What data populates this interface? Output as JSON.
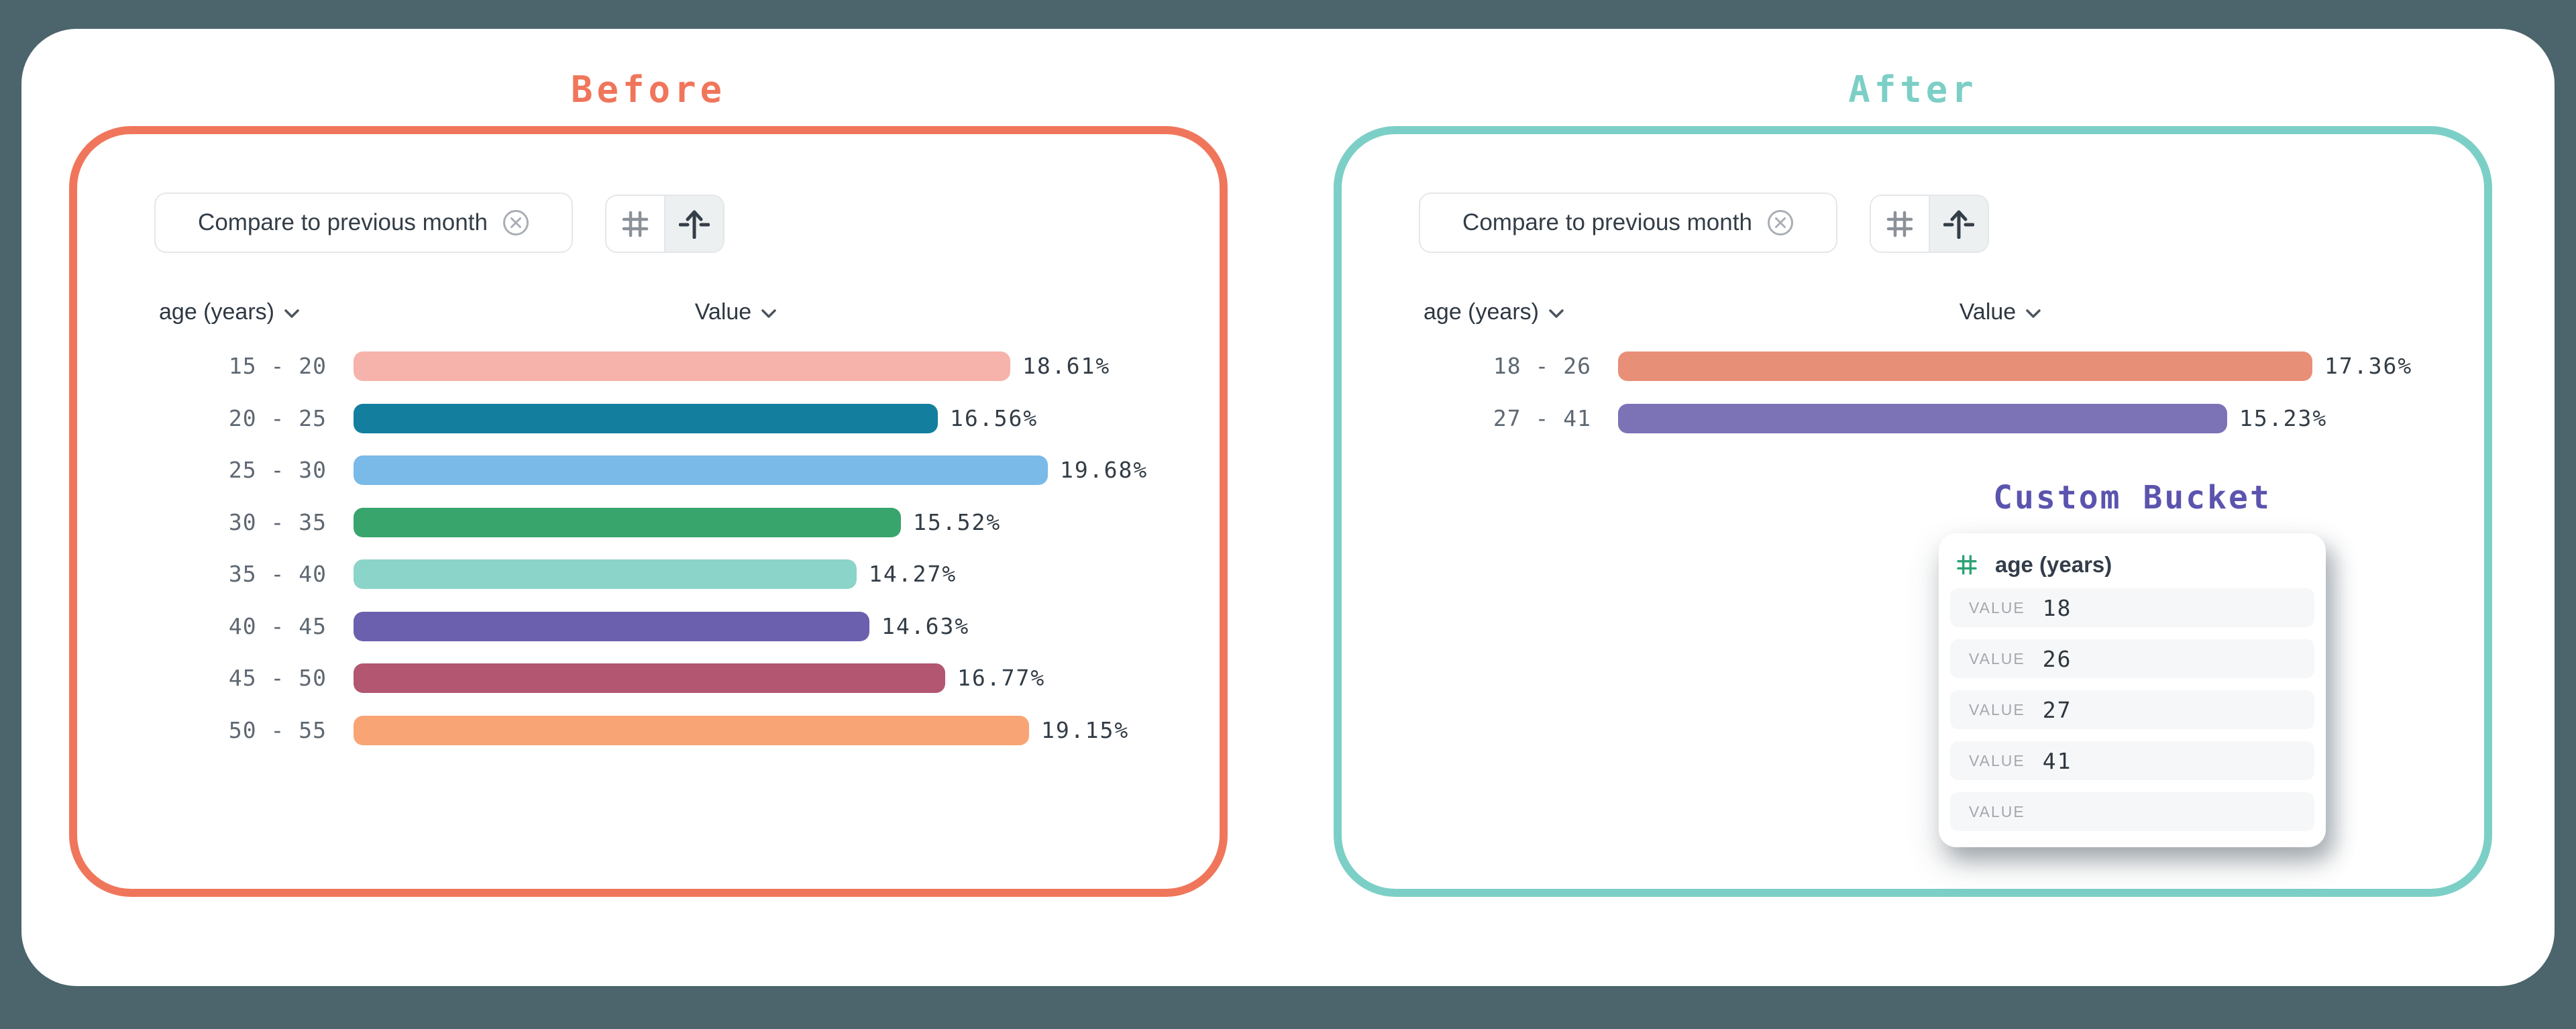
{
  "page": {
    "background": "#4C656D"
  },
  "before_panel": {
    "title": "Before",
    "accent": "#F0765B",
    "filter_chip": {
      "label": "Compare to previous month"
    },
    "columns": {
      "dimension": "age (years)",
      "measure": "Value"
    },
    "rows": [
      {
        "label": "15 - 20",
        "value": "18.61%",
        "pct": 18.61,
        "color": "#F6B3AB"
      },
      {
        "label": "20 - 25",
        "value": "16.56%",
        "pct": 16.56,
        "color": "#137E9E"
      },
      {
        "label": "25 - 30",
        "value": "19.68%",
        "pct": 19.68,
        "color": "#79BAE8"
      },
      {
        "label": "30 - 35",
        "value": "15.52%",
        "pct": 15.52,
        "color": "#38A56C"
      },
      {
        "label": "35 - 40",
        "value": "14.27%",
        "pct": 14.27,
        "color": "#8BD4C9"
      },
      {
        "label": "40 - 45",
        "value": "14.63%",
        "pct": 14.63,
        "color": "#6A60AE"
      },
      {
        "label": "45 - 50",
        "value": "16.77%",
        "pct": 16.77,
        "color": "#B25672"
      },
      {
        "label": "50 - 55",
        "value": "19.15%",
        "pct": 19.15,
        "color": "#F9A475"
      }
    ]
  },
  "after_panel": {
    "title": "After",
    "accent": "#7CCFC6",
    "filter_chip": {
      "label": "Compare to previous month"
    },
    "columns": {
      "dimension": "age (years)",
      "measure": "Value"
    },
    "rows": [
      {
        "label": "18 - 26",
        "value": "17.36%",
        "pct": 17.36,
        "color": "#E88F78"
      },
      {
        "label": "27 - 41",
        "value": "15.23%",
        "pct": 15.23,
        "color": "#7C73B6"
      }
    ]
  },
  "custom_bucket": {
    "title": "Custom Bucket",
    "accent": "#5B54AE",
    "field_label": "age (years)",
    "hash_color": "#2EA274",
    "rows": [
      {
        "label": "VALUE",
        "value": "18"
      },
      {
        "label": "VALUE",
        "value": "26"
      },
      {
        "label": "VALUE",
        "value": "27"
      },
      {
        "label": "VALUE",
        "value": "41"
      },
      {
        "label": "VALUE",
        "value": ""
      }
    ]
  },
  "chart_data": [
    {
      "type": "bar",
      "title": "Before",
      "categories": [
        "15 - 20",
        "20 - 25",
        "25 - 30",
        "30 - 35",
        "35 - 40",
        "40 - 45",
        "45 - 50",
        "50 - 55"
      ],
      "values": [
        18.61,
        16.56,
        19.68,
        15.52,
        14.27,
        14.63,
        16.77,
        19.15
      ],
      "xlabel": "Value",
      "ylabel": "age (years)",
      "orientation": "horizontal",
      "value_format": "percent",
      "grid": false,
      "legend": false
    },
    {
      "type": "bar",
      "title": "After",
      "categories": [
        "18 - 26",
        "27 - 41"
      ],
      "values": [
        17.36,
        15.23
      ],
      "xlabel": "Value",
      "ylabel": "age (years)",
      "orientation": "horizontal",
      "value_format": "percent",
      "grid": false,
      "legend": false
    }
  ]
}
